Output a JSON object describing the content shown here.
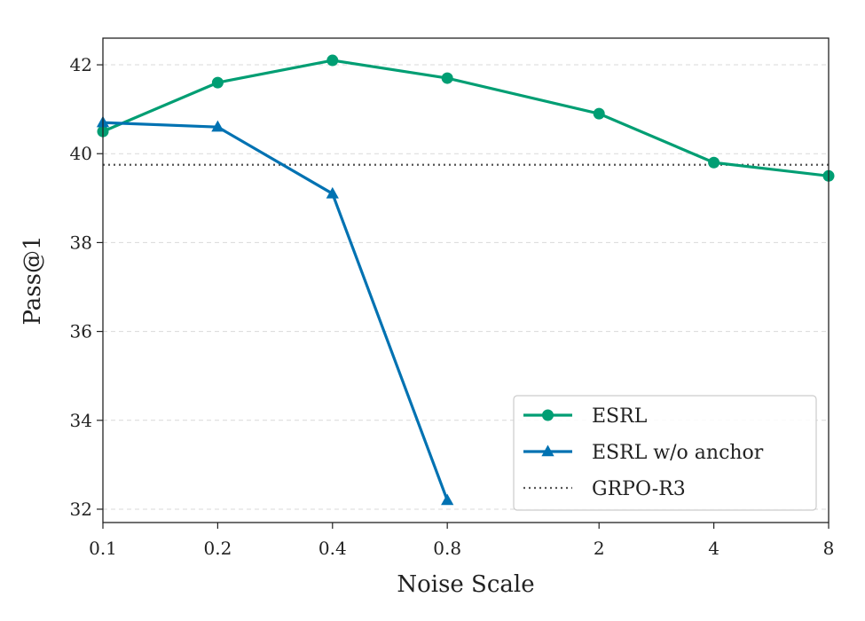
{
  "chart_data": {
    "type": "line",
    "title": "",
    "xlabel": "Noise Scale",
    "ylabel": "Pass@1",
    "x_scale": "log2",
    "x": [
      0.1,
      0.2,
      0.4,
      0.8,
      2,
      4,
      8
    ],
    "x_tick_labels": [
      "0.1",
      "0.2",
      "0.4",
      "0.8",
      "2",
      "4",
      "8"
    ],
    "xlim": [
      0.1,
      8
    ],
    "ylim": [
      31.7,
      42.6
    ],
    "y_ticks": [
      32,
      34,
      36,
      38,
      40,
      42
    ],
    "y_tick_labels": [
      "32",
      "34",
      "36",
      "38",
      "40",
      "42"
    ],
    "grid": "horizontal dashed",
    "legend_position": "lower-right",
    "series": [
      {
        "name": "ESRL",
        "color": "#009E73",
        "marker": "circle",
        "values": [
          40.5,
          41.6,
          42.1,
          41.7,
          40.9,
          39.8,
          39.5
        ]
      },
      {
        "name": "ESRL w/o anchor",
        "color": "#0072B2",
        "marker": "triangle",
        "values": [
          40.7,
          40.6,
          39.1,
          32.2,
          null,
          null,
          null
        ]
      }
    ],
    "reference_lines": [
      {
        "name": "GRPO-R3",
        "color": "#555555",
        "style": "dotted",
        "value": 39.75
      }
    ]
  }
}
